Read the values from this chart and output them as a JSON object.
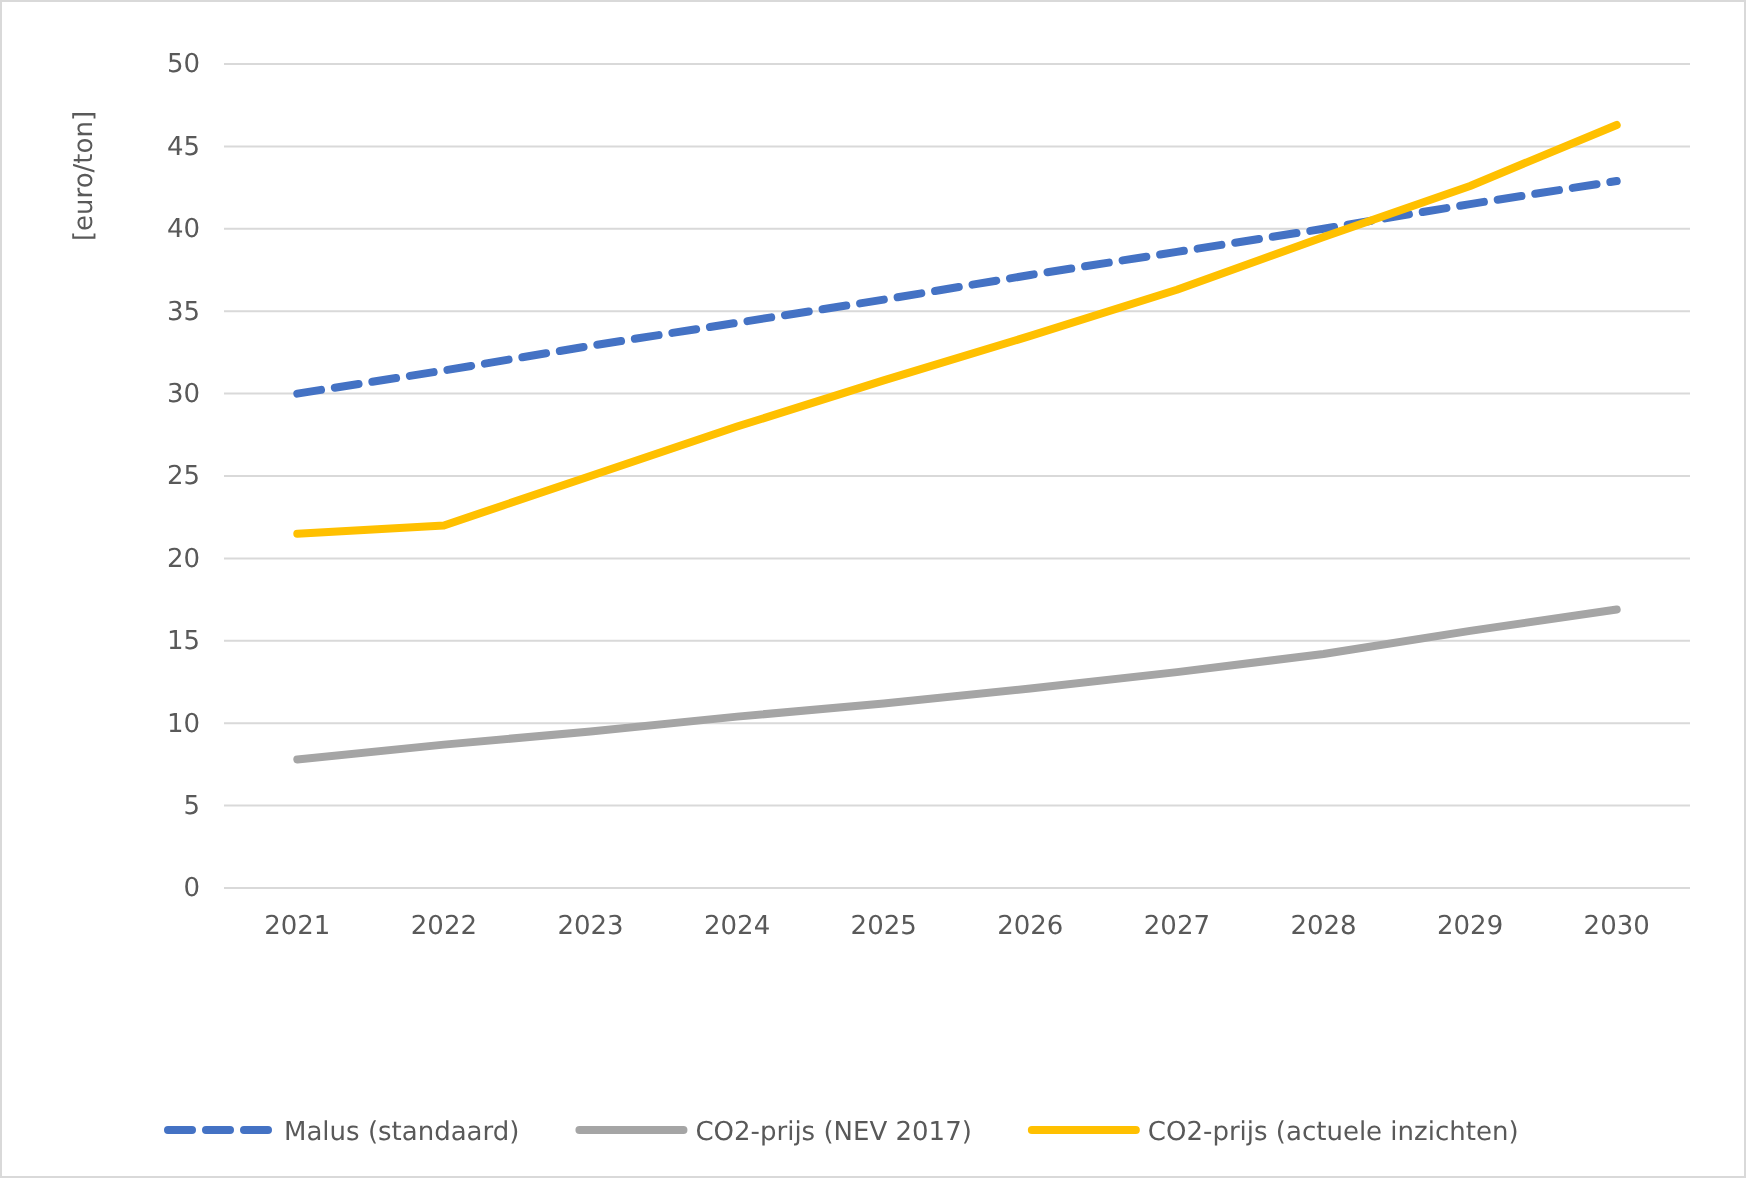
{
  "chart_data": {
    "type": "line",
    "ylabel": "[euro/ton]",
    "categories": [
      "2021",
      "2022",
      "2023",
      "2024",
      "2025",
      "2026",
      "2027",
      "2028",
      "2029",
      "2030"
    ],
    "series": [
      {
        "name": "Malus (standaard)",
        "color": "#4472c4",
        "line_style": "dashed",
        "values": [
          30,
          31.4,
          32.9,
          34.3,
          35.7,
          37.2,
          38.6,
          40.0,
          41.5,
          42.9
        ]
      },
      {
        "name": "CO2-prijs (NEV 2017)",
        "color": "#a5a5a5",
        "line_style": "solid",
        "values": [
          7.8,
          8.7,
          9.5,
          10.4,
          11.2,
          12.1,
          13.1,
          14.2,
          15.6,
          16.9
        ]
      },
      {
        "name": "CO2-prijs (actuele inzichten)",
        "color": "#ffc000",
        "line_style": "solid",
        "values": [
          21.5,
          22,
          25,
          28,
          30.8,
          33.5,
          36.3,
          39.5,
          42.6,
          46.3
        ]
      }
    ],
    "ylim": [
      0,
      50
    ],
    "yticks": [
      0,
      5,
      10,
      15,
      20,
      25,
      30,
      35,
      40,
      45,
      50
    ],
    "grid": "y",
    "legend": "bottom",
    "marker": "none"
  }
}
